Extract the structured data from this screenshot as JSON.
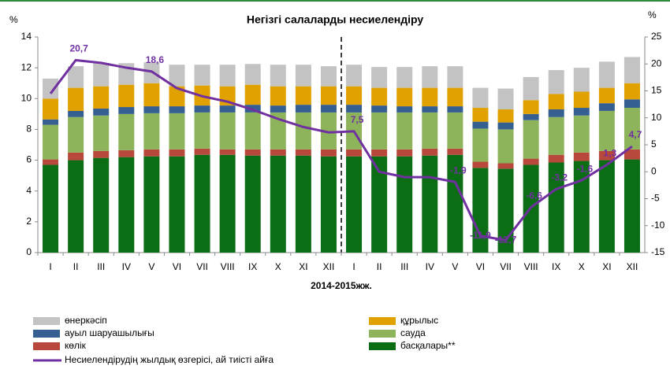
{
  "chart_data": {
    "type": "stacked-bar-line",
    "title": "Негізгі салаларды несиелендіру",
    "xlabel": "2014-2015жж.",
    "ylabel": "%",
    "y2label": "%",
    "categories": [
      "I",
      "II",
      "III",
      "IV",
      "V",
      "VI",
      "VII",
      "VIII",
      "IX",
      "X",
      "XI",
      "XII",
      "I",
      "II",
      "III",
      "IV",
      "V",
      "VI",
      "VII",
      "VIII",
      "IX",
      "X",
      "XI",
      "XII"
    ],
    "ylim": [
      0,
      14
    ],
    "yticks": [
      0,
      2,
      4,
      6,
      8,
      10,
      12,
      14
    ],
    "y2lim": [
      -15,
      25
    ],
    "y2ticks": [
      -15,
      -10,
      -5,
      0,
      5,
      10,
      15,
      20,
      25
    ],
    "series": [
      {
        "name": "басқалары**",
        "color": "#0b6e14",
        "values": [
          5.7,
          6.0,
          6.15,
          6.2,
          6.25,
          6.25,
          6.35,
          6.35,
          6.3,
          6.3,
          6.3,
          6.25,
          6.25,
          6.25,
          6.25,
          6.3,
          6.35,
          5.5,
          5.45,
          5.7,
          5.85,
          5.95,
          6.0,
          6.05
        ]
      },
      {
        "name": "көлік",
        "color": "#b8473c",
        "values": [
          0.35,
          0.5,
          0.45,
          0.45,
          0.45,
          0.45,
          0.4,
          0.35,
          0.4,
          0.4,
          0.4,
          0.45,
          0.45,
          0.45,
          0.45,
          0.45,
          0.4,
          0.4,
          0.35,
          0.4,
          0.5,
          0.55,
          0.6,
          0.65
        ]
      },
      {
        "name": "сауда",
        "color": "#8db45b",
        "values": [
          2.25,
          2.3,
          2.3,
          2.35,
          2.35,
          2.35,
          2.35,
          2.4,
          2.4,
          2.4,
          2.4,
          2.4,
          2.4,
          2.4,
          2.4,
          2.35,
          2.35,
          2.15,
          2.2,
          2.5,
          2.45,
          2.4,
          2.6,
          2.7
        ]
      },
      {
        "name": "ауыл шаруашылығы",
        "color": "#365f91",
        "values": [
          0.35,
          0.4,
          0.45,
          0.45,
          0.45,
          0.45,
          0.45,
          0.45,
          0.5,
          0.45,
          0.5,
          0.5,
          0.5,
          0.45,
          0.4,
          0.4,
          0.4,
          0.45,
          0.45,
          0.4,
          0.5,
          0.5,
          0.5,
          0.55
        ]
      },
      {
        "name": "құрылыс",
        "color": "#e1a100",
        "values": [
          1.35,
          1.5,
          1.45,
          1.45,
          1.5,
          1.3,
          1.3,
          1.25,
          1.3,
          1.25,
          1.2,
          1.2,
          1.2,
          1.15,
          1.2,
          1.2,
          1.2,
          0.9,
          0.85,
          0.9,
          1.0,
          1.05,
          1.0,
          1.05
        ]
      },
      {
        "name": "өнеркәсіп",
        "color": "#c3c3c3",
        "values": [
          1.3,
          1.4,
          1.5,
          1.4,
          1.35,
          1.4,
          1.35,
          1.4,
          1.35,
          1.4,
          1.4,
          1.3,
          1.4,
          1.35,
          1.35,
          1.4,
          1.4,
          1.3,
          1.35,
          1.5,
          1.55,
          1.55,
          1.7,
          1.7
        ]
      },
      {
        "name": "Несиелендірудің жылдық өзгерісі, ай тиісті айға",
        "color": "#7030a0",
        "axis": "y2",
        "values": [
          14.5,
          20.7,
          20.2,
          19.3,
          18.6,
          15.5,
          14,
          13,
          11.5,
          9.8,
          8.3,
          7.3,
          7.5,
          0,
          -1,
          -1,
          -1.9,
          -11.9,
          -12.7,
          -6.6,
          -3.2,
          -1.6,
          1.3,
          4.7
        ],
        "value_labels": [
          null,
          "20,7",
          null,
          null,
          "18,6",
          null,
          null,
          null,
          null,
          null,
          null,
          null,
          "7,5",
          null,
          null,
          null,
          "-1,9",
          "-11,9",
          "-12,7",
          "-6,6",
          "-3,2",
          "-1,6",
          "1,3",
          "4,7"
        ]
      }
    ]
  }
}
